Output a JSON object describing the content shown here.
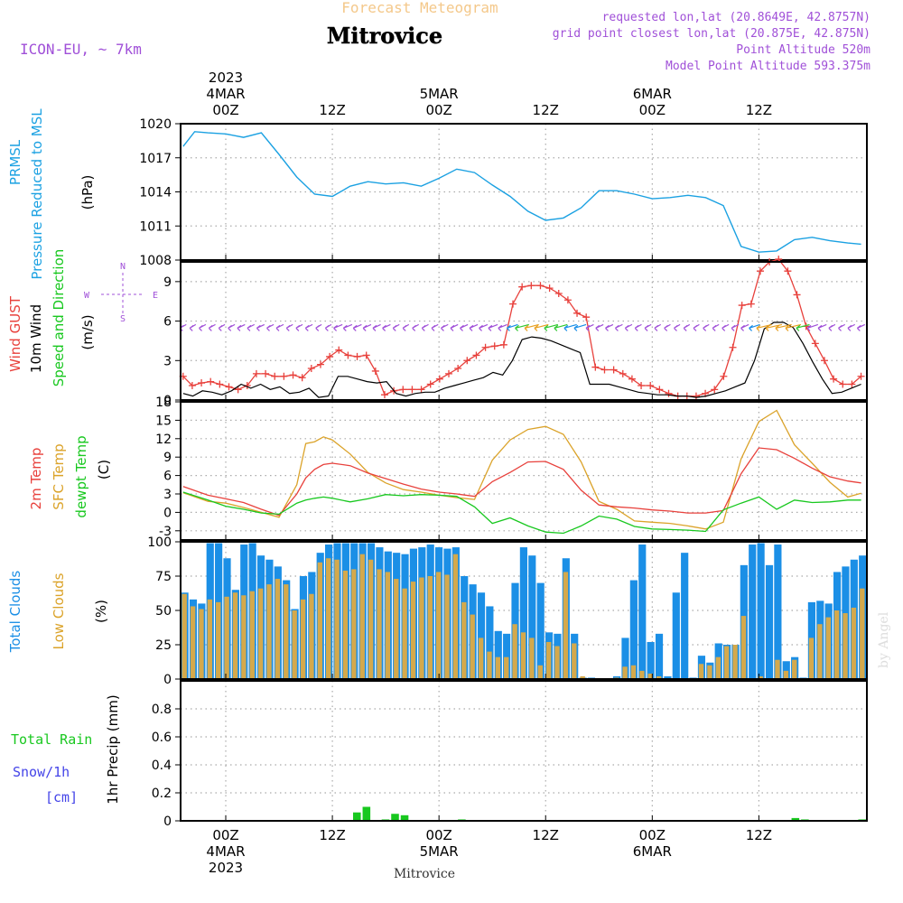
{
  "header": {
    "product": "Forecast Meteogram",
    "location": "Mitrovice",
    "model": "ICON-EU, ~ 7km",
    "requested": "requested lon,lat (20.8649E, 42.8757N)",
    "gridpoint": "grid point closest lon,lat (20.875E, 42.875N)",
    "point_alt": "Point Altitude 520m",
    "model_alt": "Model Point Altitude 593.375m",
    "footer_location": "Mitrovice",
    "watermark": "by Angel"
  },
  "colors": {
    "pressure": "#1ba1e2",
    "gust": "#e8413c",
    "wind": "#000000",
    "temp": "#e8413c",
    "sfc": "#dba32a",
    "dewpt": "#18c81f",
    "total_clouds": "#1b8fe6",
    "low_clouds": "#d4a94c",
    "rain": "#18c81f",
    "snow": "#4444e8",
    "purple": "#a050d8",
    "title_orange": "#f4c88a",
    "grid": "#aaaaaa"
  },
  "chart_data": {
    "type": "meteogram",
    "time_axis": {
      "start": "2023-03-04 -04Z",
      "step_hours": 1,
      "top_labels": [
        {
          "hour": 0,
          "lines": [
            "2023",
            "4MAR",
            "00Z"
          ]
        },
        {
          "hour": 12,
          "lines": [
            "12Z"
          ]
        },
        {
          "hour": 24,
          "lines": [
            "5MAR",
            "00Z"
          ]
        },
        {
          "hour": 36,
          "lines": [
            "12Z"
          ]
        },
        {
          "hour": 48,
          "lines": [
            "6MAR",
            "00Z"
          ]
        },
        {
          "hour": 60,
          "lines": [
            "12Z"
          ]
        }
      ],
      "bottom_labels": [
        {
          "hour": 0,
          "lines": [
            "00Z",
            "4MAR",
            "2023"
          ]
        },
        {
          "hour": 12,
          "lines": [
            "12Z"
          ]
        },
        {
          "hour": 24,
          "lines": [
            "00Z",
            "5MAR"
          ]
        },
        {
          "hour": 36,
          "lines": [
            "12Z"
          ]
        },
        {
          "hour": 48,
          "lines": [
            "00Z",
            "6MAR"
          ]
        },
        {
          "hour": 60,
          "lines": [
            "12Z"
          ]
        }
      ]
    },
    "pressure": {
      "labels": [
        "PRMSL",
        "Pressure Reduced to MSL",
        "(hPa)"
      ],
      "ylim": [
        1008,
        1020
      ],
      "yticks": [
        1008,
        1011,
        1014,
        1017,
        1020
      ],
      "x": [
        -4.8,
        -3.5,
        -2,
        0,
        2,
        4,
        6,
        8,
        10,
        12,
        14,
        16,
        18,
        20,
        22,
        24,
        26,
        28,
        30,
        32,
        34,
        36,
        38,
        40,
        42,
        44,
        46,
        48,
        50,
        52,
        54,
        56,
        58,
        60,
        62,
        64,
        66,
        68,
        70,
        71.5
      ],
      "y": [
        1018,
        1019.3,
        1019.2,
        1019.1,
        1018.8,
        1019.2,
        1017.3,
        1015.3,
        1013.8,
        1013.6,
        1014.5,
        1014.9,
        1014.7,
        1014.8,
        1014.5,
        1015.2,
        1016.0,
        1015.7,
        1014.6,
        1013.6,
        1012.3,
        1011.5,
        1011.7,
        1012.6,
        1014.1,
        1014.1,
        1013.8,
        1013.4,
        1013.5,
        1013.7,
        1013.5,
        1012.8,
        1009.2,
        1008.7,
        1008.8,
        1009.8,
        1010.0,
        1009.7,
        1009.5,
        1009.4
      ]
    },
    "wind": {
      "labels": [
        "Wind GUST",
        "10m Wind",
        "Speed and Direction",
        "(m/s)"
      ],
      "compass": [
        "N",
        "W",
        "E",
        "S"
      ],
      "ylim": [
        0,
        10.5
      ],
      "yticks": [
        0,
        3,
        6,
        9
      ],
      "gust": [
        1.8,
        1.1,
        1.3,
        1.4,
        1.2,
        1.0,
        0.8,
        1.1,
        2.0,
        2.0,
        1.8,
        1.8,
        1.9,
        1.7,
        2.4,
        2.7,
        3.3,
        3.8,
        3.4,
        3.3,
        3.4,
        2.2,
        0.4,
        0.7,
        0.8,
        0.8,
        0.8,
        1.2,
        1.6,
        2.0,
        2.4,
        3.0,
        3.4,
        4.0,
        4.1,
        4.2,
        7.3,
        8.6,
        8.7,
        8.7,
        8.5,
        8.1,
        7.6,
        6.6,
        6.3,
        2.5,
        2.3,
        2.3,
        2.0,
        1.6,
        1.1,
        1.1,
        0.8,
        0.5,
        0.3,
        0.3,
        0.3,
        0.5,
        0.8,
        1.8,
        4.0,
        7.2,
        7.3,
        9.8,
        10.5,
        10.7,
        9.8,
        8.0,
        5.6,
        4.3,
        3.0,
        1.6,
        1.2,
        1.2,
        1.8
      ],
      "speed": [
        0.5,
        0.3,
        0.7,
        0.6,
        0.4,
        0.7,
        1.2,
        0.9,
        1.2,
        0.8,
        1.0,
        0.5,
        0.6,
        0.9,
        0.2,
        0.3,
        1.8,
        1.8,
        1.6,
        1.4,
        1.3,
        1.4,
        0.5,
        0.3,
        0.5,
        0.6,
        0.6,
        0.9,
        1.1,
        1.3,
        1.5,
        1.7,
        2.1,
        1.9,
        3.0,
        4.6,
        4.8,
        4.7,
        4.5,
        4.2,
        3.9,
        3.6,
        1.2,
        1.2,
        1.2,
        1.0,
        0.8,
        0.6,
        0.5,
        0.4,
        0.4,
        0.3,
        0.3,
        0.2,
        0.3,
        0.5,
        0.7,
        1.0,
        1.3,
        3.0,
        5.4,
        5.9,
        5.9,
        5.5,
        4.3,
        2.9,
        1.6,
        0.5,
        0.6,
        0.9,
        1.2
      ]
    },
    "temperature": {
      "labels": [
        "2m Temp",
        "SFC Temp",
        "dewpt Temp",
        "(C)"
      ],
      "ylim": [
        -4.5,
        18
      ],
      "yticks": [
        -3,
        0,
        3,
        6,
        9,
        12,
        15,
        18
      ],
      "x": [
        -4.8,
        -2,
        0,
        2,
        4,
        6,
        8,
        9,
        10,
        11,
        12,
        14,
        16,
        18,
        20,
        22,
        24,
        26,
        28,
        30,
        32,
        34,
        36,
        38,
        40,
        42,
        44,
        46,
        48,
        50,
        52,
        54,
        56,
        58,
        60,
        62,
        64,
        66,
        68,
        70,
        71.5
      ],
      "temp2m": [
        4.2,
        2.8,
        2.2,
        1.6,
        0.5,
        -0.5,
        3.0,
        5.6,
        7.0,
        7.8,
        8.0,
        7.6,
        6.4,
        5.5,
        4.6,
        3.8,
        3.3,
        3.0,
        2.6,
        5.0,
        6.5,
        8.2,
        8.3,
        7.0,
        3.6,
        1.2,
        0.9,
        0.7,
        0.4,
        0.2,
        -0.1,
        -0.1,
        0.3,
        6.3,
        10.5,
        10.2,
        8.8,
        7.2,
        5.8,
        5.1,
        4.8
      ],
      "sfc": [
        3.2,
        1.8,
        1.5,
        0.8,
        0.0,
        -0.8,
        4.5,
        11.2,
        11.5,
        12.3,
        11.8,
        9.5,
        6.5,
        4.8,
        3.7,
        3.3,
        2.8,
        2.4,
        2.1,
        8.5,
        11.8,
        13.5,
        14.0,
        12.7,
        8.2,
        1.8,
        0.5,
        -1.4,
        -1.6,
        -1.8,
        -2.2,
        -2.7,
        -1.6,
        8.7,
        14.8,
        16.6,
        11.0,
        8.0,
        4.9,
        2.5,
        3.1
      ],
      "dewpt": [
        3.3,
        2.0,
        1.0,
        0.5,
        -0.1,
        -0.3,
        1.5,
        2.0,
        2.3,
        2.5,
        2.3,
        1.7,
        2.2,
        2.9,
        2.7,
        2.9,
        2.8,
        2.6,
        0.9,
        -1.8,
        -0.9,
        -2.2,
        -3.2,
        -3.4,
        -2.2,
        -0.6,
        -1.1,
        -2.3,
        -2.7,
        -2.8,
        -2.9,
        -3.1,
        0.4,
        1.5,
        2.5,
        0.5,
        2.0,
        1.6,
        1.7,
        2.0,
        2.0
      ]
    },
    "clouds": {
      "labels": [
        "Total Clouds",
        "Low Clouds",
        "(%)"
      ],
      "ylim": [
        0,
        100
      ],
      "yticks": [
        0,
        25,
        50,
        75,
        100
      ],
      "total": [
        63,
        58,
        55,
        99,
        99,
        88,
        65,
        98,
        99,
        90,
        87,
        82,
        72,
        51,
        75,
        78,
        92,
        98,
        99,
        99,
        99,
        99,
        99,
        96,
        93,
        92,
        91,
        95,
        96,
        98,
        96,
        95,
        96,
        75,
        69,
        63,
        53,
        35,
        33,
        70,
        96,
        90,
        70,
        34,
        33,
        88,
        33,
        1,
        1,
        0,
        0,
        2,
        30,
        72,
        98,
        27,
        33,
        2,
        63,
        92,
        1,
        17,
        12,
        26,
        25,
        25,
        83,
        98,
        99,
        83,
        98,
        13,
        16,
        1,
        56,
        57,
        55,
        78,
        82,
        87,
        90
      ],
      "low": [
        62,
        53,
        51,
        58,
        56,
        60,
        63,
        61,
        64,
        66,
        69,
        73,
        69,
        50,
        58,
        62,
        85,
        88,
        87,
        79,
        80,
        91,
        87,
        80,
        78,
        73,
        66,
        71,
        74,
        75,
        78,
        76,
        91,
        56,
        47,
        30,
        20,
        16,
        16,
        40,
        34,
        30,
        10,
        27,
        24,
        78,
        26,
        2,
        0,
        0,
        0,
        1,
        9,
        10,
        6,
        4,
        2,
        0,
        0,
        0,
        0,
        11,
        10,
        16,
        24,
        25,
        46,
        0,
        2,
        0,
        14,
        6,
        14,
        0,
        30,
        40,
        45,
        50,
        48,
        52,
        66
      ]
    },
    "precip": {
      "labels": [
        "Total  Rain",
        "Snow/1h",
        "[cm]",
        "1hr Precip (mm)"
      ],
      "ylim": [
        0,
        1.0
      ],
      "yticks": [
        0,
        0.2,
        0.4,
        0.6,
        0.8
      ],
      "rain": [
        0,
        0,
        0,
        0,
        0,
        0,
        0,
        0,
        0,
        0,
        0,
        0,
        0,
        0,
        0,
        0,
        0,
        0,
        0.06,
        0.1,
        0,
        0.01,
        0.05,
        0.04,
        0,
        0,
        0,
        0,
        0,
        0.01,
        0,
        0,
        0,
        0,
        0,
        0,
        0,
        0,
        0,
        0,
        0,
        0,
        0,
        0,
        0,
        0,
        0,
        0,
        0,
        0,
        0,
        0,
        0,
        0,
        0,
        0,
        0,
        0,
        0,
        0,
        0,
        0,
        0,
        0,
        0.02,
        0.01,
        0,
        0,
        0,
        0,
        0,
        0.01
      ],
      "snow": []
    }
  }
}
